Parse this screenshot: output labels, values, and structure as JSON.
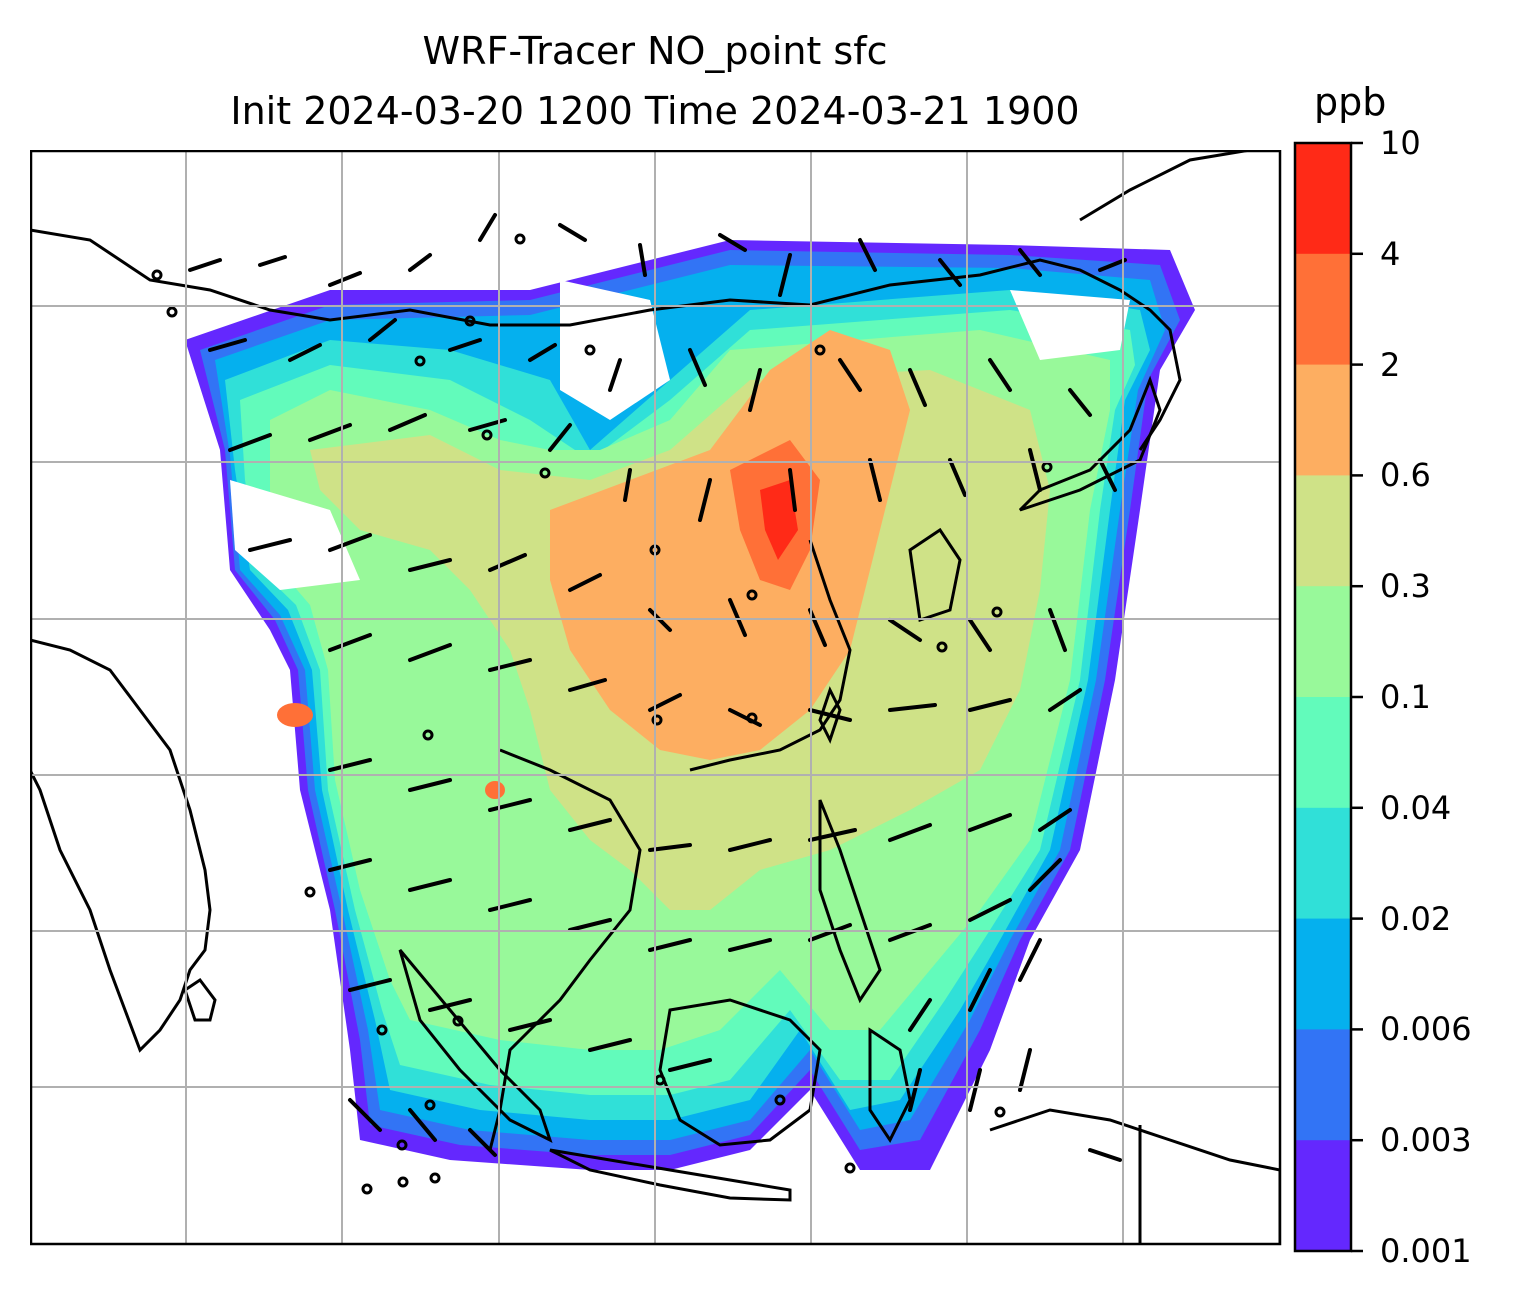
{
  "chart": {
    "title_line1": "WRF-Tracer NO_point sfc",
    "title_line2": "Init 2024-03-20 1200 Time 2024-03-21 1900"
  },
  "colorbar": {
    "units": "ppb",
    "labels": [
      "10",
      "4",
      "2",
      "0.6",
      "0.3",
      "0.1",
      "0.04",
      "0.02",
      "0.006",
      "0.003",
      "0.001"
    ],
    "colors": [
      "#ff2a17",
      "#ff7037",
      "#fdae61",
      "#cfe287",
      "#98f99a",
      "#62fbbb",
      "#30e0d8",
      "#05b0ee",
      "#3274f5",
      "#6428fe"
    ]
  },
  "chart_data": {
    "type": "heatmap",
    "title": "WRF-Tracer NO_point sfc\nInit 2024-03-20 1200 Time 2024-03-21 1900",
    "colorbar_units": "ppb",
    "colorbar_levels": [
      0.001,
      0.003,
      0.006,
      0.02,
      0.04,
      0.1,
      0.3,
      0.6,
      2,
      4,
      10
    ],
    "field": "surface NO point-source tracer concentration with wind barbs over East and Southeast Asia",
    "grid": true
  }
}
